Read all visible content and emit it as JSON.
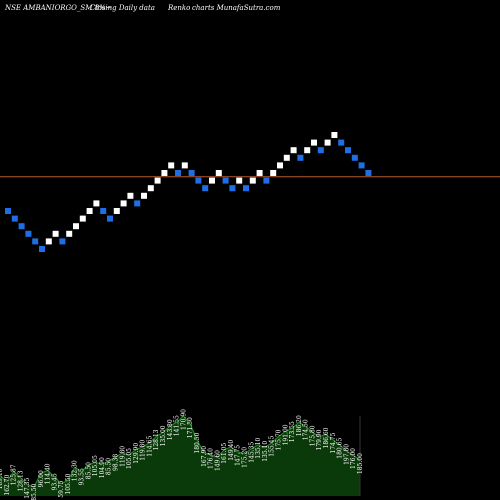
{
  "header": {
    "symbol": "NSE AMBANIORGO_SM 8%~",
    "mode": "Closing Daily data",
    "chart_kind": "Renko",
    "site": "charts MunafaSutra.com"
  },
  "colors": {
    "background": "#000000",
    "up_brick": "#ffffff",
    "down_brick": "#1e6fe6",
    "reference_line": "#b35a2a",
    "volume_fill": "#0a3a0a",
    "volume_line": "#1f8f1f"
  },
  "chart_data": {
    "type": "renko",
    "brick_size_pct": 8,
    "reference_line_visible": true,
    "bricks": [
      {
        "dir": "down",
        "level": 0
      },
      {
        "dir": "down",
        "level": -1
      },
      {
        "dir": "down",
        "level": -2
      },
      {
        "dir": "down",
        "level": -3
      },
      {
        "dir": "down",
        "level": -4
      },
      {
        "dir": "down",
        "level": -5
      },
      {
        "dir": "up",
        "level": -4
      },
      {
        "dir": "up",
        "level": -3
      },
      {
        "dir": "down",
        "level": -4
      },
      {
        "dir": "up",
        "level": -3
      },
      {
        "dir": "up",
        "level": -2
      },
      {
        "dir": "up",
        "level": -1
      },
      {
        "dir": "up",
        "level": 0
      },
      {
        "dir": "up",
        "level": 1
      },
      {
        "dir": "down",
        "level": 0
      },
      {
        "dir": "down",
        "level": -1
      },
      {
        "dir": "up",
        "level": 0
      },
      {
        "dir": "up",
        "level": 1
      },
      {
        "dir": "up",
        "level": 2
      },
      {
        "dir": "down",
        "level": 1
      },
      {
        "dir": "up",
        "level": 2
      },
      {
        "dir": "up",
        "level": 3
      },
      {
        "dir": "up",
        "level": 4
      },
      {
        "dir": "up",
        "level": 5
      },
      {
        "dir": "up",
        "level": 6
      },
      {
        "dir": "down",
        "level": 5
      },
      {
        "dir": "up",
        "level": 6
      },
      {
        "dir": "down",
        "level": 5
      },
      {
        "dir": "down",
        "level": 4
      },
      {
        "dir": "down",
        "level": 3
      },
      {
        "dir": "up",
        "level": 4
      },
      {
        "dir": "up",
        "level": 5
      },
      {
        "dir": "down",
        "level": 4
      },
      {
        "dir": "down",
        "level": 3
      },
      {
        "dir": "up",
        "level": 4
      },
      {
        "dir": "down",
        "level": 3
      },
      {
        "dir": "up",
        "level": 4
      },
      {
        "dir": "up",
        "level": 5
      },
      {
        "dir": "down",
        "level": 4
      },
      {
        "dir": "up",
        "level": 5
      },
      {
        "dir": "up",
        "level": 6
      },
      {
        "dir": "up",
        "level": 7
      },
      {
        "dir": "up",
        "level": 8
      },
      {
        "dir": "down",
        "level": 7
      },
      {
        "dir": "up",
        "level": 8
      },
      {
        "dir": "up",
        "level": 9
      },
      {
        "dir": "down",
        "level": 8
      },
      {
        "dir": "up",
        "level": 9
      },
      {
        "dir": "up",
        "level": 10
      },
      {
        "dir": "down",
        "level": 9
      },
      {
        "dir": "down",
        "level": 8
      },
      {
        "dir": "down",
        "level": 7
      },
      {
        "dir": "down",
        "level": 6
      },
      {
        "dir": "down",
        "level": 5
      }
    ],
    "reference_level": 4.5,
    "volume": {
      "values": [
        20,
        14,
        24,
        18,
        11,
        9,
        22,
        25,
        19,
        12,
        15,
        28,
        24,
        30,
        33,
        31,
        34,
        38,
        42,
        40,
        45,
        48,
        52,
        58,
        62,
        68,
        72,
        78,
        70,
        55,
        42,
        40,
        38,
        45,
        48,
        43,
        41,
        46,
        50,
        47,
        52,
        58,
        63,
        66,
        72,
        68,
        62,
        58,
        60,
        55,
        50,
        44,
        40,
        35
      ],
      "labels": [
        "169.10",
        "162.70",
        "125.87",
        "128.13",
        "147.35",
        "85.50",
        "96.00",
        "114.40",
        "93.45",
        "59.75",
        "105.50",
        "132.30",
        "93.55",
        "85.50",
        "105.05",
        "104.90",
        "85.50",
        "98.38",
        "119.80",
        "105.05",
        "129.90",
        "119.80",
        "114.65",
        "128.13",
        "135.00",
        "143.80",
        "141.55",
        "170.90",
        "171.50",
        "180.50",
        "167.90",
        "176.40",
        "149.60",
        "161.05",
        "149.40",
        "147.75",
        "175.20",
        "145.35",
        "135.10",
        "135.10",
        "155.45",
        "175.70",
        "191.00",
        "173.55",
        "186.20",
        "174.50",
        "175.80",
        "179.90",
        "186.60",
        "174.75",
        "180.65",
        "197.80",
        "176.00",
        "185.00"
      ]
    }
  }
}
